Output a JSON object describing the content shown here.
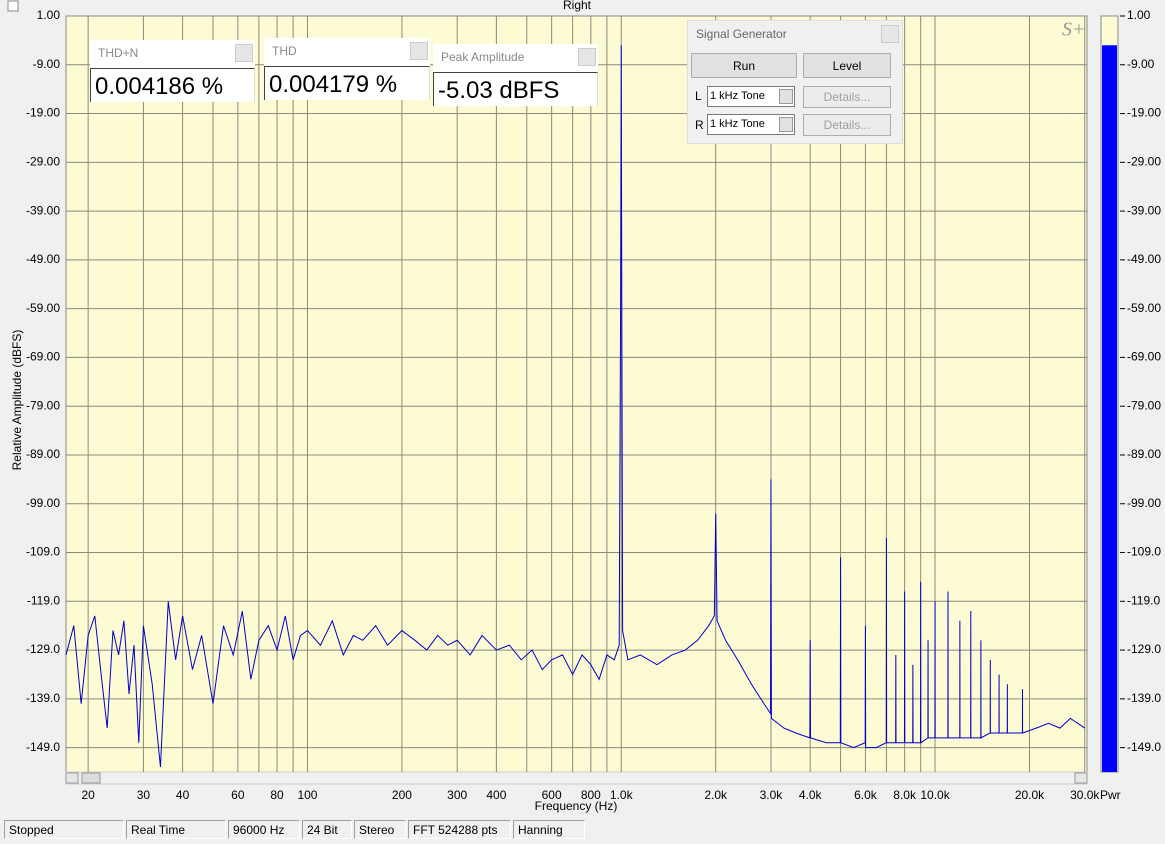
{
  "window": {
    "channel": "Right"
  },
  "panels": [
    {
      "title": "THD+N",
      "value": "0.004186 %"
    },
    {
      "title": "THD",
      "value": "0.004179 %"
    },
    {
      "title": "Peak Amplitude",
      "value": "-5.03 dBFS"
    }
  ],
  "generator": {
    "title": "Signal Generator",
    "run": "Run",
    "level": "Level",
    "channels": [
      {
        "name": "L",
        "signal": "1 kHz Tone",
        "details": "Details..."
      },
      {
        "name": "R",
        "signal": "1 kHz Tone",
        "details": "Details..."
      }
    ]
  },
  "meter": {
    "label": "Pwr",
    "value": -5
  },
  "status": [
    "Stopped",
    "Real Time",
    "96000 Hz",
    "24 Bit",
    "Stereo",
    "FFT 524288 pts",
    "Hanning"
  ],
  "chart_data": {
    "type": "line",
    "xscale": "log",
    "color": "#0000cc",
    "grid": true,
    "xlabel": "Frequency (Hz)",
    "ylabel": "Relative Amplitude (dBFS)",
    "xlim": [
      17,
      30500
    ],
    "ylim": [
      -154,
      1
    ],
    "xticks": [
      20,
      30,
      40,
      60,
      80,
      100,
      200,
      300,
      400,
      600,
      800,
      {
        "value": 1000,
        "label": "1.0k"
      },
      {
        "value": 2000,
        "label": "2.0k"
      },
      {
        "value": 3000,
        "label": "3.0k"
      },
      {
        "value": 4000,
        "label": "4.0k"
      },
      {
        "value": 6000,
        "label": "6.0k"
      },
      {
        "value": 8000,
        "label": "8.0k"
      },
      {
        "value": 10000,
        "label": "10.0k"
      },
      {
        "value": 20000,
        "label": "20.0k"
      },
      {
        "value": 30000,
        "label": "30.0k"
      }
    ],
    "xminor": [
      50,
      70,
      90,
      500,
      700,
      900,
      5000,
      7000,
      9000
    ],
    "yticks": [
      {
        "value": 1,
        "label": "1.00"
      },
      {
        "value": -9,
        "label": "-9.00"
      },
      {
        "value": -19,
        "label": "-19.00"
      },
      {
        "value": -29,
        "label": "-29.00"
      },
      {
        "value": -39,
        "label": "-39.00"
      },
      {
        "value": -49,
        "label": "-49.00"
      },
      {
        "value": -59,
        "label": "-59.00"
      },
      {
        "value": -69,
        "label": "-69.00"
      },
      {
        "value": -79,
        "label": "-79.00"
      },
      {
        "value": -89,
        "label": "-89.00"
      },
      {
        "value": -99,
        "label": "-99.00"
      },
      {
        "value": -109,
        "label": "-109.0"
      },
      {
        "value": -119,
        "label": "-119.0"
      },
      {
        "value": -129,
        "label": "-129.0"
      },
      {
        "value": -139,
        "label": "-139.0"
      },
      {
        "value": -149,
        "label": "-149.0"
      }
    ],
    "x": [
      17,
      18,
      19,
      20,
      21,
      22,
      23,
      24,
      25,
      26,
      27,
      28,
      29,
      30,
      32,
      34,
      36,
      38,
      40,
      43,
      46,
      50,
      54,
      58,
      62,
      66,
      70,
      75,
      80,
      85,
      90,
      95,
      100,
      110,
      120,
      130,
      140,
      150,
      165,
      180,
      200,
      220,
      240,
      260,
      280,
      300,
      330,
      360,
      400,
      440,
      480,
      520,
      560,
      600,
      650,
      700,
      750,
      800,
      850,
      900,
      950,
      985,
      995,
      1000,
      1002,
      1010,
      1050,
      1150,
      1300,
      1450,
      1600,
      1750,
      1900,
      1980,
      2000,
      2020,
      2150,
      2350,
      2600,
      2850,
      2990,
      3000,
      3010,
      3300,
      3600,
      3990,
      4000,
      4010,
      4500,
      4990,
      5000,
      5010,
      5500,
      5990,
      6000,
      6010,
      6500,
      6990,
      7000,
      7010,
      7490,
      7500,
      7510,
      7990,
      8000,
      8010,
      8490,
      8500,
      8510,
      8990,
      9000,
      9010,
      9490,
      9500,
      9510,
      9990,
      10000,
      10010,
      10990,
      11000,
      11010,
      11990,
      12000,
      12010,
      12990,
      13000,
      13010,
      13990,
      14000,
      14010,
      14990,
      15000,
      15010,
      15990,
      16000,
      16010,
      16990,
      17000,
      17010,
      18990,
      19000,
      19010,
      21000,
      23000,
      25000,
      27000,
      30000
    ],
    "values": [
      -130,
      -124,
      -140,
      -126,
      -122,
      -134,
      -145,
      -125,
      -130,
      -123,
      -138,
      -128,
      -148,
      -124,
      -136,
      -153,
      -119,
      -131,
      -122,
      -133,
      -126,
      -140,
      -124,
      -130,
      -121,
      -135,
      -127,
      -124,
      -129,
      -122,
      -131,
      -126,
      -125,
      -128,
      -123,
      -130,
      -126,
      -127,
      -124,
      -128,
      -125,
      -127,
      -129,
      -126,
      -128,
      -127,
      -130,
      -126,
      -129,
      -128,
      -131,
      -129,
      -133,
      -131,
      -130,
      -134,
      -130,
      -132,
      -135,
      -130,
      -131,
      -128,
      -60,
      -5,
      -35,
      -125,
      -131,
      -130,
      -132,
      -130,
      -129,
      -127,
      -124,
      -122,
      -101,
      -123,
      -127,
      -131,
      -136,
      -140,
      -142,
      -94,
      -143,
      -145,
      -146,
      -147,
      -127,
      -147,
      -148,
      -148,
      -110,
      -148,
      -149,
      -148,
      -124,
      -149,
      -149,
      -148,
      -106,
      -148,
      -148,
      -130,
      -148,
      -148,
      -117,
      -148,
      -148,
      -132,
      -148,
      -148,
      -115,
      -148,
      -147,
      -127,
      -147,
      -147,
      -119,
      -147,
      -147,
      -117,
      -147,
      -147,
      -123,
      -147,
      -147,
      -121,
      -147,
      -147,
      -127,
      -147,
      -146,
      -131,
      -146,
      -146,
      -134,
      -146,
      -146,
      -136,
      -146,
      -146,
      -137,
      -146,
      -145,
      -144,
      -145,
      -143,
      -145
    ]
  }
}
